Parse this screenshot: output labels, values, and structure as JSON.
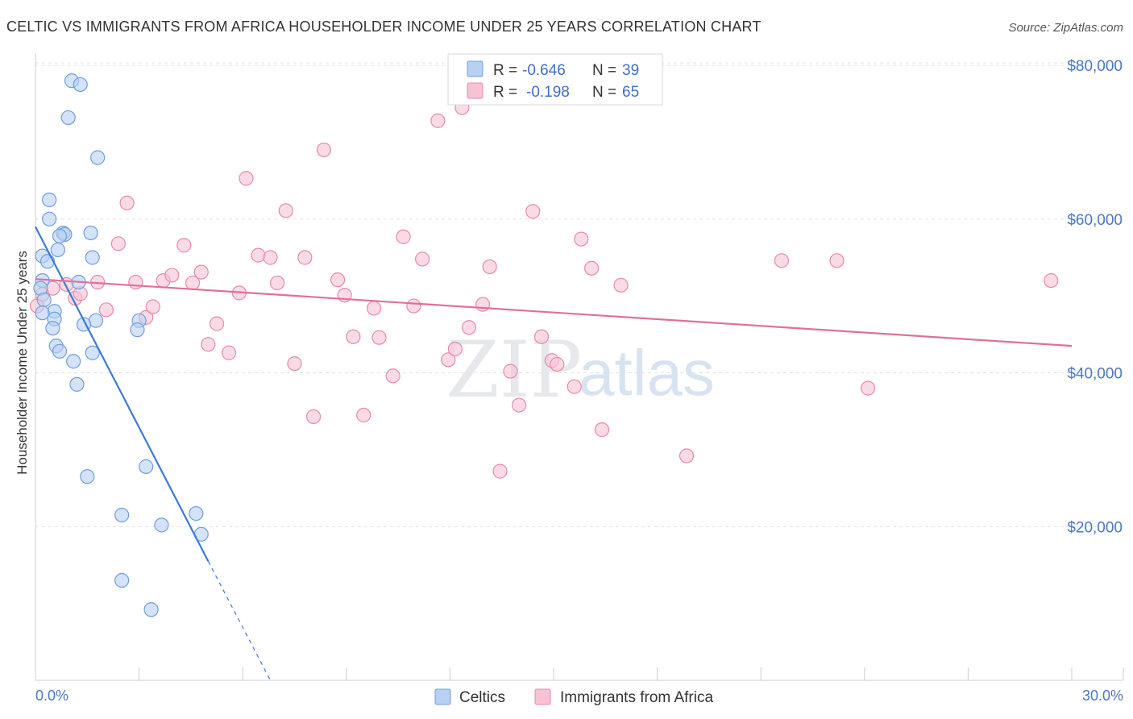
{
  "chart_data": {
    "type": "scatter",
    "title": "CELTIC VS IMMIGRANTS FROM AFRICA HOUSEHOLDER INCOME UNDER 25 YEARS CORRELATION CHART",
    "source": "Source: ZipAtlas.com",
    "ylabel": "Householder Income Under 25 years",
    "xlim": [
      0,
      30
    ],
    "ylim": [
      0,
      82000
    ],
    "x_tick_labels": {
      "min": "0.0%",
      "max": "30.0%"
    },
    "y_ticks": [
      {
        "value": 20000,
        "label": "$20,000"
      },
      {
        "value": 40000,
        "label": "$40,000"
      },
      {
        "value": 60000,
        "label": "$60,000"
      },
      {
        "value": 80000,
        "label": "$80,000"
      }
    ],
    "watermark": {
      "zip": "ZIP",
      "atlas": "atlas"
    },
    "legend": [
      {
        "r_label": "R = ",
        "r_value": "-0.646",
        "n_label": "N = ",
        "n_value": "39"
      },
      {
        "r_label": "R = ",
        "r_value": "-0.198",
        "n_label": "N = ",
        "n_value": "65"
      }
    ],
    "series": [
      {
        "name": "Celtics",
        "color": "#6f9ee0",
        "fill": "#b8d0f2",
        "trend": {
          "x0": 0.0,
          "y0": 59000,
          "x1": 5.0,
          "y1": 15500,
          "dash_to_x": 6.8,
          "dash_to_y": 0
        },
        "points": [
          [
            1.05,
            78000
          ],
          [
            1.3,
            77500
          ],
          [
            0.95,
            73200
          ],
          [
            1.8,
            68000
          ],
          [
            0.4,
            62500
          ],
          [
            0.4,
            60000
          ],
          [
            0.8,
            58200
          ],
          [
            0.85,
            58000
          ],
          [
            1.6,
            58200
          ],
          [
            0.7,
            57800
          ],
          [
            0.65,
            56000
          ],
          [
            1.65,
            55000
          ],
          [
            0.2,
            55200
          ],
          [
            0.35,
            54500
          ],
          [
            0.2,
            52000
          ],
          [
            1.25,
            51800
          ],
          [
            0.15,
            51000
          ],
          [
            0.25,
            49500
          ],
          [
            0.55,
            48000
          ],
          [
            0.2,
            47800
          ],
          [
            0.55,
            47000
          ],
          [
            1.75,
            46800
          ],
          [
            1.4,
            46300
          ],
          [
            0.5,
            45800
          ],
          [
            3.0,
            46800
          ],
          [
            2.95,
            45600
          ],
          [
            0.6,
            43500
          ],
          [
            0.7,
            42800
          ],
          [
            1.65,
            42600
          ],
          [
            1.1,
            41500
          ],
          [
            1.2,
            38500
          ],
          [
            3.2,
            27800
          ],
          [
            1.5,
            26500
          ],
          [
            2.5,
            21500
          ],
          [
            4.65,
            21700
          ],
          [
            3.65,
            20200
          ],
          [
            4.8,
            19000
          ],
          [
            2.5,
            13000
          ],
          [
            3.35,
            9200
          ]
        ]
      },
      {
        "name": "Immigrants from Africa",
        "color": "#e889aa",
        "fill": "#f6c3d4",
        "trend": {
          "x0": 0.0,
          "y0": 52200,
          "x1": 30.0,
          "y1": 43500
        },
        "points": [
          [
            0.2,
            50200
          ],
          [
            0.5,
            51000
          ],
          [
            0.9,
            51500
          ],
          [
            1.15,
            49700
          ],
          [
            1.8,
            51800
          ],
          [
            1.3,
            50300
          ],
          [
            2.05,
            48200
          ],
          [
            2.4,
            56800
          ],
          [
            2.65,
            62100
          ],
          [
            2.9,
            51800
          ],
          [
            3.2,
            47200
          ],
          [
            3.4,
            48600
          ],
          [
            3.7,
            52000
          ],
          [
            3.95,
            52700
          ],
          [
            4.3,
            56600
          ],
          [
            4.55,
            51700
          ],
          [
            4.8,
            53100
          ],
          [
            5.0,
            43700
          ],
          [
            5.25,
            46400
          ],
          [
            5.6,
            42600
          ],
          [
            5.9,
            50400
          ],
          [
            6.1,
            65300
          ],
          [
            6.45,
            55300
          ],
          [
            6.8,
            55000
          ],
          [
            7.0,
            51700
          ],
          [
            7.25,
            61100
          ],
          [
            7.5,
            41200
          ],
          [
            7.8,
            55000
          ],
          [
            8.05,
            34300
          ],
          [
            8.35,
            69000
          ],
          [
            8.75,
            52100
          ],
          [
            8.95,
            50100
          ],
          [
            9.2,
            44700
          ],
          [
            9.5,
            34500
          ],
          [
            9.8,
            48400
          ],
          [
            9.95,
            44600
          ],
          [
            10.35,
            39600
          ],
          [
            10.65,
            57700
          ],
          [
            10.95,
            48700
          ],
          [
            11.2,
            54800
          ],
          [
            11.65,
            72800
          ],
          [
            11.95,
            41700
          ],
          [
            12.15,
            43100
          ],
          [
            12.35,
            74500
          ],
          [
            12.55,
            45900
          ],
          [
            12.95,
            48900
          ],
          [
            13.15,
            53800
          ],
          [
            13.45,
            27200
          ],
          [
            13.75,
            40200
          ],
          [
            14.0,
            35800
          ],
          [
            14.4,
            61000
          ],
          [
            14.65,
            44700
          ],
          [
            14.95,
            41600
          ],
          [
            15.1,
            41100
          ],
          [
            15.6,
            38200
          ],
          [
            15.8,
            57400
          ],
          [
            16.1,
            53600
          ],
          [
            16.4,
            32600
          ],
          [
            16.95,
            51400
          ],
          [
            18.85,
            29200
          ],
          [
            21.6,
            54600
          ],
          [
            23.2,
            54600
          ],
          [
            24.1,
            38000
          ],
          [
            29.4,
            52000
          ],
          [
            0.05,
            48700
          ]
        ]
      }
    ]
  }
}
